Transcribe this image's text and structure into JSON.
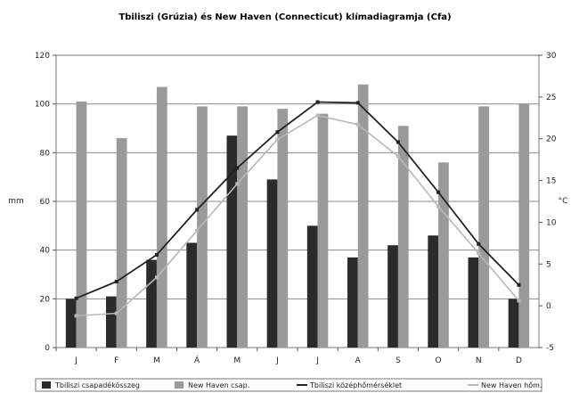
{
  "chart_data": {
    "type": "bar",
    "title": "Tbiliszi (Grúzia) és New Haven (Connecticut) klímadiagramja (Cfa)",
    "categories": [
      "J",
      "F",
      "M",
      "Á",
      "M",
      "J",
      "J",
      "A",
      "S",
      "O",
      "N",
      "D"
    ],
    "ylabel_left": "mm",
    "ylabel_right": "°C",
    "ylim_left": [
      0,
      120
    ],
    "ylim_right": [
      -5,
      30
    ],
    "yticks_left": [
      "0",
      "20",
      "40",
      "60",
      "80",
      "100",
      "120"
    ],
    "yticks_right": [
      "-5",
      "0",
      "5",
      "10",
      "15",
      "20",
      "25",
      "30"
    ],
    "series": [
      {
        "name": "Tbiliszi csapadékösszeg",
        "type": "bar",
        "axis": "left",
        "color": "#2b2b2b",
        "values": [
          20,
          21,
          36,
          43,
          87,
          69,
          50,
          37,
          42,
          46,
          37,
          20
        ]
      },
      {
        "name": "New Haven csap.",
        "type": "bar",
        "axis": "left",
        "color": "#9a9a9a",
        "values": [
          101,
          86,
          107,
          99,
          99,
          98,
          96,
          108,
          91,
          76,
          99,
          100
        ]
      },
      {
        "name": "Tbiliszi középhőmérséklet",
        "type": "line",
        "axis": "right",
        "color": "#222222",
        "values": [
          0.9,
          2.9,
          6.1,
          11.5,
          16.5,
          20.8,
          24.4,
          24.3,
          19.6,
          13.6,
          7.4,
          2.5
        ]
      },
      {
        "name": "New Haven hőm.",
        "type": "line",
        "axis": "right",
        "color": "#b8b8b8",
        "values": [
          -1.2,
          -0.9,
          3.4,
          9.0,
          14.6,
          19.9,
          22.8,
          21.7,
          17.9,
          11.9,
          6.3,
          0.6
        ]
      }
    ],
    "legend_position": "bottom",
    "grid": true
  }
}
